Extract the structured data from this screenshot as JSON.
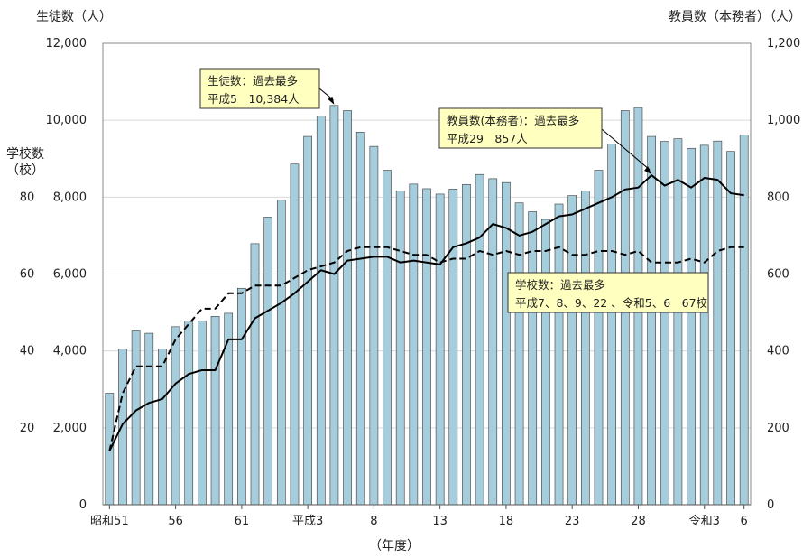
{
  "chart_data": {
    "type": "bar",
    "xlabel": "（年度）",
    "y_left_label": "生徒数（人）",
    "y_right_label": "教員数（本務者）（人）",
    "y_school_label_line1": "学校数",
    "y_school_label_line2": "（校）",
    "ylim_left": [
      0,
      12000
    ],
    "ylim_right": [
      0,
      1200
    ],
    "ylim_school": [
      0,
      120
    ],
    "left_ticks": [
      "0",
      "2,000",
      "4,000",
      "6,000",
      "8,000",
      "10,000",
      "12,000"
    ],
    "right_ticks": [
      "0",
      "200",
      "400",
      "600",
      "800",
      "1,000",
      "1,200"
    ],
    "school_ticks": [
      "20",
      "40",
      "60",
      "80"
    ],
    "x_tick_labels": [
      {
        "index": 0,
        "label": "昭和51"
      },
      {
        "index": 5,
        "label": "56"
      },
      {
        "index": 10,
        "label": "61"
      },
      {
        "index": 15,
        "label": "平成3"
      },
      {
        "index": 20,
        "label": "8"
      },
      {
        "index": 25,
        "label": "13"
      },
      {
        "index": 30,
        "label": "18"
      },
      {
        "index": 35,
        "label": "23"
      },
      {
        "index": 40,
        "label": "28"
      },
      {
        "index": 45,
        "label": "令和3"
      },
      {
        "index": 48,
        "label": "6"
      }
    ],
    "grid": true,
    "series": [
      {
        "name": "生徒数",
        "type": "bar",
        "axis": "left",
        "color": "#a6cddc",
        "values": [
          2900,
          4050,
          4520,
          4460,
          4050,
          4630,
          4780,
          4780,
          4900,
          4980,
          5630,
          6790,
          7480,
          7920,
          8860,
          9580,
          10110,
          10384,
          10250,
          9690,
          9320,
          8700,
          8160,
          8340,
          8220,
          8080,
          8210,
          8330,
          8590,
          8480,
          8380,
          7850,
          7620,
          7420,
          7820,
          8040,
          8160,
          8700,
          9380,
          10250,
          10330,
          9580,
          9450,
          9520,
          9270,
          9350,
          9460,
          9190,
          9620
        ]
      },
      {
        "name": "教員数（本務者）",
        "type": "line",
        "axis": "right",
        "style": "solid",
        "color": "#000000",
        "values": [
          140,
          210,
          245,
          265,
          275,
          315,
          340,
          350,
          350,
          430,
          430,
          485,
          505,
          525,
          550,
          580,
          610,
          600,
          635,
          640,
          645,
          645,
          630,
          635,
          630,
          625,
          670,
          680,
          695,
          730,
          720,
          700,
          710,
          730,
          750,
          755,
          770,
          785,
          800,
          820,
          825,
          857,
          830,
          845,
          825,
          850,
          845,
          810,
          805
        ]
      },
      {
        "name": "学校数",
        "type": "line",
        "axis": "school",
        "style": "dashed",
        "color": "#000000",
        "values": [
          14,
          29,
          36,
          36,
          36,
          43,
          47,
          51,
          51,
          55,
          55,
          57,
          57,
          57,
          59,
          61,
          62,
          63,
          66,
          67,
          67,
          67,
          66,
          65,
          65,
          63,
          64,
          64,
          66,
          65,
          66,
          65,
          66,
          66,
          67,
          65,
          65,
          66,
          66,
          65,
          66,
          63,
          63,
          63,
          64,
          63,
          66,
          67,
          67
        ]
      }
    ],
    "annotations": [
      {
        "name": "students-max",
        "lines": [
          "生徒数：過去最多",
          "平成5　10,384人"
        ],
        "target_index": 17
      },
      {
        "name": "teachers-max",
        "lines": [
          "教員数(本務者)：過去最多",
          "平成29　857人"
        ],
        "target_index": 41
      },
      {
        "name": "schools-max",
        "lines": [
          "学校数：過去最多",
          "平成7、8、9、22 、令和5、6　67校"
        ]
      }
    ],
    "annotation_fill": "#ffffc0"
  }
}
